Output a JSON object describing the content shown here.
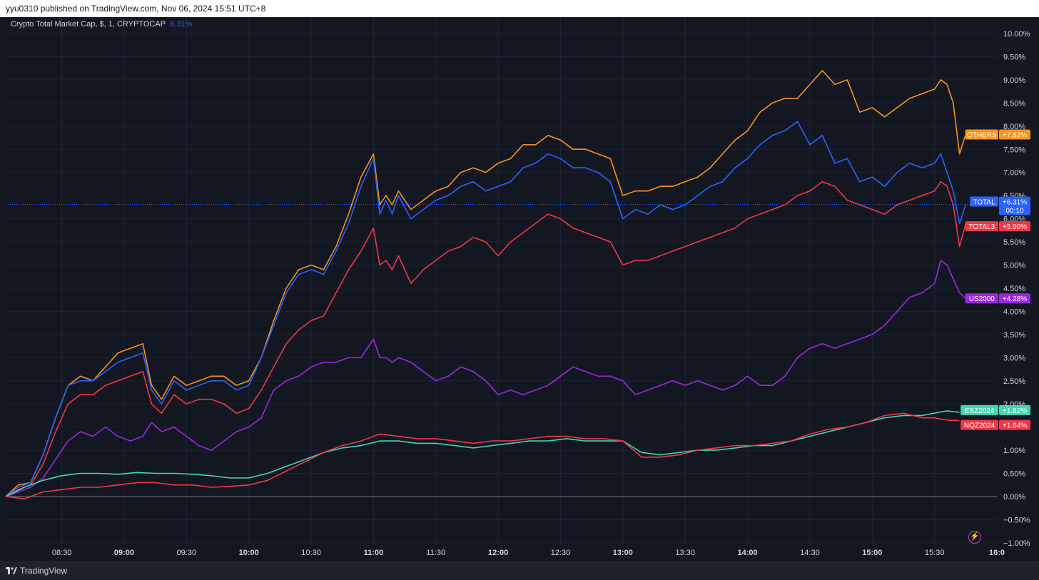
{
  "header": {
    "publish_text": "yyu0310 published on TradingView.com, Nov 06, 2024 15:51 UTC+8"
  },
  "legend": {
    "symbol_text": "Crypto Total Market Cap, $, 1, CRYPTOCAP",
    "value": "6.31%"
  },
  "footer": {
    "brand": "TradingView"
  },
  "icons": {
    "logo": "tradingview-logo-icon",
    "flash": "lightning-icon"
  },
  "colors": {
    "background": "#131722",
    "grid": "#1f2330",
    "axis_text": "#d1d4dc",
    "TOTAL": "#2962ff",
    "OTHERS": "#f7931a",
    "TOTAL3": "#f23645",
    "US2000": "#9c27e0",
    "ESZ2024": "#3fd9b0",
    "NQZ2024": "#f23645"
  },
  "chart_data": {
    "type": "line",
    "x_unit": "time",
    "x_ticks": [
      {
        "label": "08:30",
        "bold": false,
        "t": 8.5
      },
      {
        "label": "09:00",
        "bold": true,
        "t": 9.0
      },
      {
        "label": "09:30",
        "bold": false,
        "t": 9.5
      },
      {
        "label": "10:00",
        "bold": true,
        "t": 10.0
      },
      {
        "label": "10:30",
        "bold": false,
        "t": 10.5
      },
      {
        "label": "11:00",
        "bold": true,
        "t": 11.0
      },
      {
        "label": "11:30",
        "bold": false,
        "t": 11.5
      },
      {
        "label": "12:00",
        "bold": true,
        "t": 12.0
      },
      {
        "label": "12:30",
        "bold": false,
        "t": 12.5
      },
      {
        "label": "13:00",
        "bold": true,
        "t": 13.0
      },
      {
        "label": "13:30",
        "bold": false,
        "t": 13.5
      },
      {
        "label": "14:00",
        "bold": true,
        "t": 14.0
      },
      {
        "label": "14:30",
        "bold": false,
        "t": 14.5
      },
      {
        "label": "15:00",
        "bold": true,
        "t": 15.0
      },
      {
        "label": "15:30",
        "bold": false,
        "t": 15.5
      },
      {
        "label": "16:0",
        "bold": true,
        "t": 16.0
      }
    ],
    "xlim": [
      8.05,
      16.0
    ],
    "ylim": [
      -1.0,
      10.3
    ],
    "y_ticks": [
      "10.00%",
      "9.50%",
      "9.00%",
      "8.50%",
      "8.00%",
      "7.50%",
      "7.00%",
      "6.50%",
      "6.00%",
      "5.50%",
      "5.00%",
      "4.50%",
      "4.00%",
      "3.50%",
      "3.00%",
      "2.50%",
      "2.00%",
      "1.50%",
      "1.00%",
      "0.50%",
      "0.00%",
      "−0.50%",
      "−1.00%"
    ],
    "y_tick_values": [
      10,
      9.5,
      9,
      8.5,
      8,
      7.5,
      7,
      6.5,
      6,
      5.5,
      5,
      4.5,
      4,
      3.5,
      3,
      2.5,
      2,
      1.5,
      1,
      0.5,
      0,
      -0.5,
      -1
    ],
    "grid": true,
    "zero_line": 0.0,
    "current_line": 6.31,
    "series": [
      {
        "name": "OTHERS",
        "badge_value": "+7.82%",
        "last": 7.82,
        "x": [
          8.05,
          8.15,
          8.25,
          8.35,
          8.45,
          8.55,
          8.65,
          8.75,
          8.85,
          8.95,
          9.05,
          9.15,
          9.22,
          9.3,
          9.4,
          9.5,
          9.6,
          9.7,
          9.8,
          9.9,
          10.0,
          10.1,
          10.2,
          10.3,
          10.4,
          10.5,
          10.6,
          10.7,
          10.8,
          10.9,
          11.0,
          11.05,
          11.1,
          11.15,
          11.2,
          11.3,
          11.4,
          11.5,
          11.6,
          11.7,
          11.8,
          11.9,
          12.0,
          12.1,
          12.2,
          12.3,
          12.4,
          12.5,
          12.6,
          12.7,
          12.8,
          12.9,
          13.0,
          13.1,
          13.2,
          13.3,
          13.4,
          13.5,
          13.6,
          13.7,
          13.8,
          13.9,
          14.0,
          14.1,
          14.2,
          14.3,
          14.4,
          14.5,
          14.6,
          14.7,
          14.8,
          14.9,
          15.0,
          15.1,
          15.2,
          15.3,
          15.4,
          15.5,
          15.55,
          15.6,
          15.65,
          15.7,
          15.75
        ],
        "y": [
          0.0,
          0.25,
          0.3,
          0.9,
          1.7,
          2.4,
          2.6,
          2.5,
          2.8,
          3.1,
          3.2,
          3.3,
          2.4,
          2.1,
          2.6,
          2.4,
          2.5,
          2.6,
          2.6,
          2.4,
          2.5,
          3.0,
          3.8,
          4.5,
          4.9,
          5.0,
          4.9,
          5.4,
          6.1,
          6.9,
          7.4,
          6.3,
          6.5,
          6.3,
          6.6,
          6.2,
          6.4,
          6.6,
          6.7,
          7.0,
          7.1,
          7.0,
          7.2,
          7.3,
          7.6,
          7.6,
          7.8,
          7.7,
          7.5,
          7.5,
          7.4,
          7.3,
          6.5,
          6.6,
          6.6,
          6.7,
          6.7,
          6.8,
          6.9,
          7.1,
          7.4,
          7.7,
          7.9,
          8.3,
          8.5,
          8.6,
          8.6,
          8.9,
          9.2,
          8.9,
          9.0,
          8.3,
          8.4,
          8.2,
          8.4,
          8.6,
          8.7,
          8.8,
          9.0,
          8.9,
          8.5,
          7.4,
          7.82
        ]
      },
      {
        "name": "TOTAL",
        "badge_value": "+6.31%",
        "badge_extra": "00:10",
        "last": 6.31,
        "x": [
          8.05,
          8.15,
          8.25,
          8.35,
          8.45,
          8.55,
          8.65,
          8.75,
          8.85,
          8.95,
          9.05,
          9.15,
          9.22,
          9.3,
          9.4,
          9.5,
          9.6,
          9.7,
          9.8,
          9.9,
          10.0,
          10.1,
          10.2,
          10.3,
          10.4,
          10.5,
          10.6,
          10.7,
          10.8,
          10.9,
          11.0,
          11.05,
          11.1,
          11.15,
          11.2,
          11.3,
          11.4,
          11.5,
          11.6,
          11.7,
          11.8,
          11.9,
          12.0,
          12.1,
          12.2,
          12.3,
          12.4,
          12.5,
          12.6,
          12.7,
          12.8,
          12.9,
          13.0,
          13.1,
          13.2,
          13.3,
          13.4,
          13.5,
          13.6,
          13.7,
          13.8,
          13.9,
          14.0,
          14.1,
          14.2,
          14.3,
          14.4,
          14.5,
          14.6,
          14.7,
          14.8,
          14.9,
          15.0,
          15.1,
          15.2,
          15.3,
          15.4,
          15.5,
          15.55,
          15.6,
          15.65,
          15.7,
          15.75
        ],
        "y": [
          0.0,
          0.2,
          0.3,
          0.9,
          1.7,
          2.4,
          2.5,
          2.5,
          2.7,
          2.9,
          3.0,
          3.1,
          2.3,
          2.0,
          2.5,
          2.3,
          2.4,
          2.5,
          2.5,
          2.3,
          2.4,
          3.0,
          3.7,
          4.4,
          4.8,
          4.9,
          4.8,
          5.3,
          5.9,
          6.7,
          7.3,
          6.1,
          6.4,
          6.1,
          6.5,
          6.0,
          6.2,
          6.4,
          6.5,
          6.7,
          6.8,
          6.6,
          6.7,
          6.8,
          7.1,
          7.2,
          7.4,
          7.3,
          7.1,
          7.1,
          7.0,
          6.8,
          6.0,
          6.2,
          6.1,
          6.3,
          6.2,
          6.3,
          6.5,
          6.7,
          6.8,
          7.1,
          7.3,
          7.6,
          7.8,
          7.9,
          8.1,
          7.6,
          7.8,
          7.2,
          7.3,
          6.8,
          6.9,
          6.7,
          7.0,
          7.2,
          7.1,
          7.2,
          7.4,
          7.0,
          6.6,
          5.9,
          6.31
        ]
      },
      {
        "name": "TOTAL3",
        "badge_value": "+5.90%",
        "last": 5.9,
        "x": [
          8.05,
          8.15,
          8.25,
          8.35,
          8.45,
          8.55,
          8.65,
          8.75,
          8.85,
          8.95,
          9.05,
          9.15,
          9.22,
          9.3,
          9.4,
          9.5,
          9.6,
          9.7,
          9.8,
          9.9,
          10.0,
          10.1,
          10.2,
          10.3,
          10.4,
          10.5,
          10.6,
          10.7,
          10.8,
          10.9,
          11.0,
          11.05,
          11.1,
          11.15,
          11.2,
          11.3,
          11.4,
          11.5,
          11.6,
          11.7,
          11.8,
          11.9,
          12.0,
          12.1,
          12.2,
          12.3,
          12.4,
          12.5,
          12.6,
          12.7,
          12.8,
          12.9,
          13.0,
          13.1,
          13.2,
          13.3,
          13.4,
          13.5,
          13.6,
          13.7,
          13.8,
          13.9,
          14.0,
          14.1,
          14.2,
          14.3,
          14.4,
          14.5,
          14.6,
          14.7,
          14.8,
          14.9,
          15.0,
          15.1,
          15.2,
          15.3,
          15.4,
          15.5,
          15.55,
          15.6,
          15.65,
          15.7,
          15.75
        ],
        "y": [
          0.0,
          0.15,
          0.25,
          0.7,
          1.4,
          2.0,
          2.2,
          2.2,
          2.4,
          2.5,
          2.6,
          2.7,
          2.0,
          1.8,
          2.2,
          2.0,
          2.1,
          2.1,
          2.0,
          1.8,
          1.9,
          2.3,
          2.8,
          3.3,
          3.6,
          3.8,
          3.9,
          4.4,
          4.9,
          5.3,
          5.8,
          5.0,
          5.1,
          4.9,
          5.2,
          4.6,
          4.9,
          5.1,
          5.3,
          5.4,
          5.6,
          5.5,
          5.2,
          5.5,
          5.7,
          5.9,
          6.1,
          6.0,
          5.8,
          5.7,
          5.6,
          5.5,
          5.0,
          5.1,
          5.1,
          5.2,
          5.3,
          5.4,
          5.5,
          5.6,
          5.7,
          5.8,
          6.0,
          6.1,
          6.2,
          6.3,
          6.5,
          6.6,
          6.8,
          6.7,
          6.4,
          6.3,
          6.2,
          6.1,
          6.3,
          6.4,
          6.5,
          6.6,
          6.8,
          6.7,
          6.3,
          5.4,
          5.9
        ]
      },
      {
        "name": "US2000",
        "badge_value": "+4.28%",
        "last": 4.28,
        "x": [
          8.05,
          8.15,
          8.25,
          8.35,
          8.45,
          8.55,
          8.65,
          8.75,
          8.85,
          8.95,
          9.05,
          9.15,
          9.22,
          9.3,
          9.4,
          9.5,
          9.6,
          9.7,
          9.8,
          9.9,
          10.0,
          10.1,
          10.2,
          10.3,
          10.4,
          10.5,
          10.6,
          10.7,
          10.8,
          10.9,
          11.0,
          11.05,
          11.1,
          11.15,
          11.2,
          11.3,
          11.4,
          11.5,
          11.6,
          11.7,
          11.8,
          11.9,
          12.0,
          12.1,
          12.2,
          12.3,
          12.4,
          12.5,
          12.6,
          12.7,
          12.8,
          12.9,
          13.0,
          13.1,
          13.2,
          13.3,
          13.4,
          13.5,
          13.6,
          13.7,
          13.8,
          13.9,
          14.0,
          14.1,
          14.2,
          14.3,
          14.4,
          14.5,
          14.6,
          14.7,
          14.8,
          14.9,
          15.0,
          15.1,
          15.2,
          15.3,
          15.4,
          15.5,
          15.55,
          15.6,
          15.65,
          15.7,
          15.75
        ],
        "y": [
          0.0,
          0.1,
          0.2,
          0.4,
          0.8,
          1.2,
          1.4,
          1.3,
          1.5,
          1.3,
          1.2,
          1.3,
          1.6,
          1.4,
          1.5,
          1.3,
          1.1,
          1.0,
          1.2,
          1.4,
          1.5,
          1.7,
          2.3,
          2.5,
          2.6,
          2.8,
          2.9,
          2.9,
          3.0,
          3.0,
          3.4,
          3.0,
          3.0,
          2.9,
          3.0,
          2.9,
          2.7,
          2.5,
          2.6,
          2.8,
          2.7,
          2.5,
          2.2,
          2.3,
          2.2,
          2.3,
          2.4,
          2.6,
          2.8,
          2.7,
          2.6,
          2.6,
          2.5,
          2.2,
          2.3,
          2.4,
          2.5,
          2.4,
          2.5,
          2.4,
          2.3,
          2.4,
          2.6,
          2.4,
          2.4,
          2.6,
          3.0,
          3.2,
          3.3,
          3.2,
          3.3,
          3.4,
          3.5,
          3.7,
          4.0,
          4.3,
          4.4,
          4.6,
          5.1,
          5.0,
          4.7,
          4.4,
          4.28
        ]
      },
      {
        "name": "ESZ2024",
        "badge_value": "+1.82%",
        "last": 1.82,
        "x": [
          8.05,
          8.2,
          8.35,
          8.5,
          8.65,
          8.8,
          8.95,
          9.1,
          9.25,
          9.4,
          9.55,
          9.7,
          9.85,
          10.0,
          10.15,
          10.3,
          10.45,
          10.6,
          10.75,
          10.9,
          11.05,
          11.2,
          11.35,
          11.5,
          11.65,
          11.8,
          11.95,
          12.1,
          12.25,
          12.4,
          12.55,
          12.7,
          12.85,
          13.0,
          13.15,
          13.3,
          13.45,
          13.6,
          13.75,
          13.9,
          14.05,
          14.2,
          14.35,
          14.5,
          14.65,
          14.8,
          14.95,
          15.1,
          15.25,
          15.4,
          15.5,
          15.6,
          15.7
        ],
        "y": [
          0.0,
          0.2,
          0.35,
          0.45,
          0.5,
          0.5,
          0.48,
          0.52,
          0.5,
          0.5,
          0.48,
          0.45,
          0.4,
          0.4,
          0.5,
          0.65,
          0.8,
          0.95,
          1.05,
          1.1,
          1.2,
          1.2,
          1.15,
          1.15,
          1.1,
          1.05,
          1.1,
          1.15,
          1.2,
          1.2,
          1.25,
          1.2,
          1.2,
          1.2,
          0.95,
          0.9,
          0.95,
          1.0,
          1.0,
          1.05,
          1.1,
          1.1,
          1.2,
          1.3,
          1.4,
          1.5,
          1.6,
          1.7,
          1.75,
          1.75,
          1.8,
          1.85,
          1.82
        ]
      },
      {
        "name": "NQZ2024",
        "badge_value": "+1.64%",
        "last": 1.64,
        "x": [
          8.05,
          8.2,
          8.35,
          8.5,
          8.65,
          8.8,
          8.95,
          9.1,
          9.25,
          9.4,
          9.55,
          9.7,
          9.85,
          10.0,
          10.15,
          10.3,
          10.45,
          10.6,
          10.75,
          10.9,
          11.05,
          11.2,
          11.35,
          11.5,
          11.65,
          11.8,
          11.95,
          12.1,
          12.25,
          12.4,
          12.55,
          12.7,
          12.85,
          13.0,
          13.15,
          13.3,
          13.45,
          13.6,
          13.75,
          13.9,
          14.05,
          14.2,
          14.35,
          14.5,
          14.65,
          14.8,
          14.95,
          15.1,
          15.25,
          15.4,
          15.5,
          15.6,
          15.7
        ],
        "y": [
          0.0,
          -0.05,
          0.1,
          0.15,
          0.2,
          0.2,
          0.25,
          0.3,
          0.3,
          0.25,
          0.25,
          0.2,
          0.22,
          0.25,
          0.35,
          0.55,
          0.75,
          0.95,
          1.1,
          1.2,
          1.35,
          1.3,
          1.25,
          1.25,
          1.2,
          1.15,
          1.2,
          1.2,
          1.25,
          1.3,
          1.3,
          1.25,
          1.25,
          1.2,
          0.85,
          0.85,
          0.9,
          1.0,
          1.05,
          1.1,
          1.1,
          1.15,
          1.2,
          1.35,
          1.45,
          1.5,
          1.6,
          1.75,
          1.8,
          1.7,
          1.7,
          1.65,
          1.64
        ]
      }
    ]
  }
}
